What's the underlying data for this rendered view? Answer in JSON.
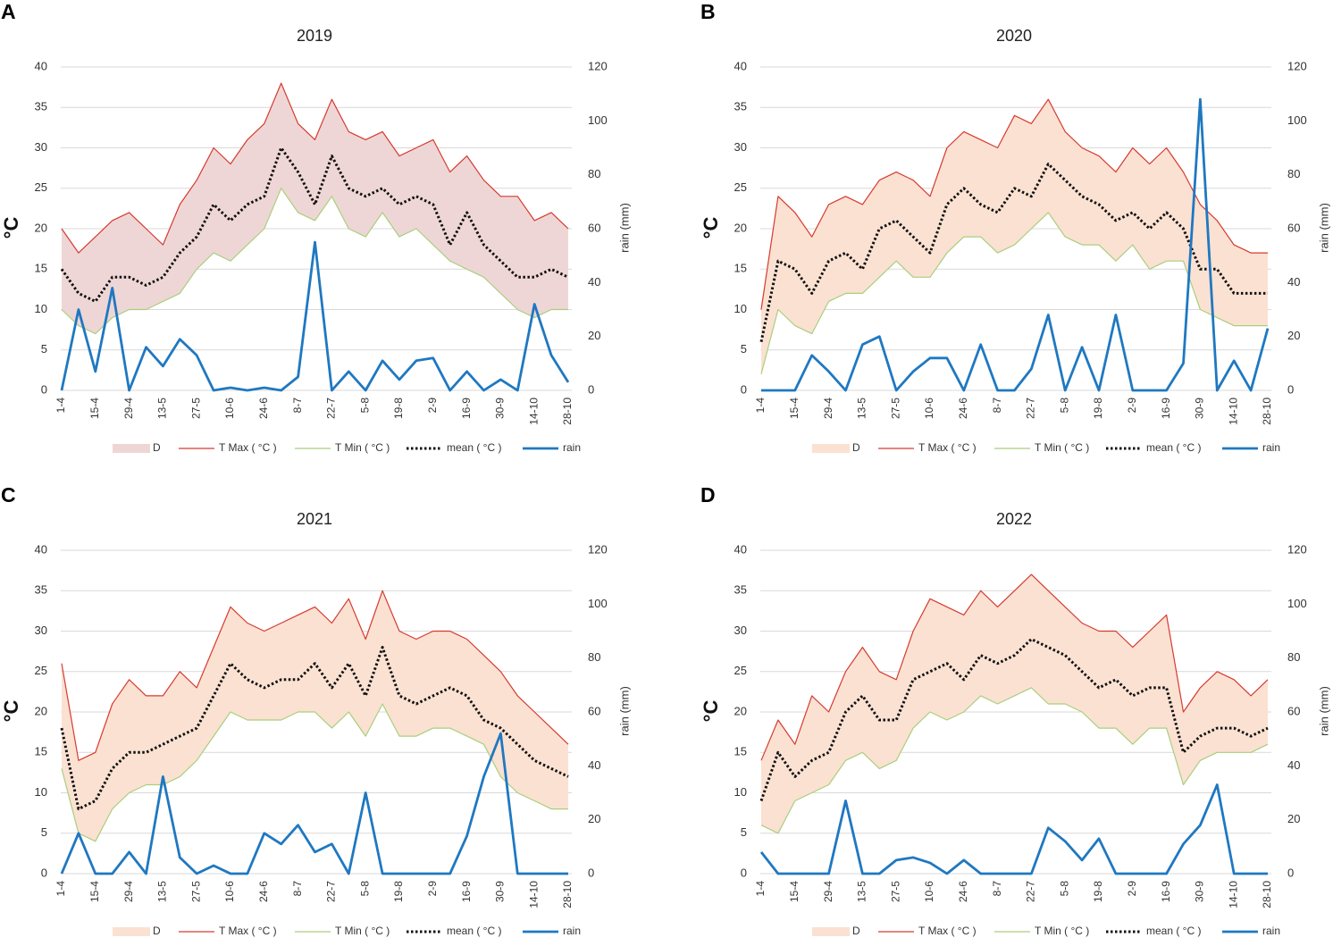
{
  "chart_data": [
    {
      "type": "line",
      "panel_label": "A",
      "title": "2019",
      "ylabel": "°C",
      "y2label": "rain (mm)",
      "categories": [
        "1-4",
        null,
        "15-4",
        null,
        "29-4",
        null,
        "13-5",
        null,
        "27-5",
        null,
        "10-6",
        null,
        "24-6",
        null,
        "8-7",
        null,
        "22-7",
        null,
        "5-8",
        null,
        "19-8",
        null,
        "2-9",
        null,
        "16-9",
        null,
        "30-9",
        null,
        "14-10",
        null,
        "28-10"
      ],
      "ylim": [
        0,
        40
      ],
      "yticks": [
        0,
        5,
        10,
        15,
        20,
        25,
        30,
        35,
        40
      ],
      "y2lim": [
        0,
        120
      ],
      "y2ticks": [
        0,
        20,
        40,
        60,
        80,
        100,
        120
      ],
      "grid": true,
      "series": [
        {
          "name": "D",
          "color": "#efd6d6"
        },
        {
          "name": "T Max ( °C )",
          "color": "#d63a2f",
          "values": [
            20,
            17,
            19,
            21,
            22,
            20,
            18,
            23,
            26,
            30,
            28,
            31,
            33,
            38,
            33,
            31,
            36,
            32,
            31,
            32,
            29,
            30,
            31,
            27,
            29,
            26,
            24,
            24,
            21,
            22,
            20
          ]
        },
        {
          "name": "T Min ( °C )",
          "color": "#a9cf7c",
          "values": [
            10,
            8,
            7,
            9,
            10,
            10,
            11,
            12,
            15,
            17,
            16,
            18,
            20,
            25,
            22,
            21,
            24,
            20,
            19,
            22,
            19,
            20,
            18,
            16,
            15,
            14,
            12,
            10,
            9,
            10,
            10
          ]
        },
        {
          "name": "mean ( °C )",
          "color": "#111111",
          "values": [
            15,
            12,
            11,
            14,
            14,
            13,
            14,
            17,
            19,
            23,
            21,
            23,
            24,
            30,
            27,
            23,
            29,
            25,
            24,
            25,
            23,
            24,
            23,
            18,
            22,
            18,
            16,
            14,
            14,
            15,
            14
          ]
        },
        {
          "name": "rain",
          "color": "#1f78c1",
          "axis": "y2",
          "values": [
            0,
            30,
            7,
            38,
            0,
            16,
            9,
            19,
            13,
            0,
            1,
            0,
            1,
            0,
            5,
            55,
            0,
            7,
            0,
            11,
            4,
            11,
            12,
            0,
            7,
            0,
            4,
            0,
            32,
            13,
            3
          ]
        }
      ]
    },
    {
      "type": "line",
      "panel_label": "B",
      "title": "2020",
      "ylabel": "°C",
      "y2label": "rain (mm)",
      "categories": [
        "1-4",
        null,
        "15-4",
        null,
        "29-4",
        null,
        "13-5",
        null,
        "27-5",
        null,
        "10-6",
        null,
        "24-6",
        null,
        "8-7",
        null,
        "22-7",
        null,
        "5-8",
        null,
        "19-8",
        null,
        "2-9",
        null,
        "16-9",
        null,
        "30-9",
        null,
        "14-10",
        null,
        "28-10"
      ],
      "ylim": [
        0,
        40
      ],
      "yticks": [
        0,
        5,
        10,
        15,
        20,
        25,
        30,
        35,
        40
      ],
      "y2lim": [
        0,
        120
      ],
      "y2ticks": [
        0,
        20,
        40,
        60,
        80,
        100,
        120
      ],
      "grid": true,
      "series": [
        {
          "name": "D",
          "color": "#fbe1d2"
        },
        {
          "name": "T Max ( °C )",
          "color": "#d63a2f",
          "values": [
            10,
            24,
            22,
            19,
            23,
            24,
            23,
            26,
            27,
            26,
            24,
            30,
            32,
            31,
            30,
            34,
            33,
            36,
            32,
            30,
            29,
            27,
            30,
            28,
            30,
            27,
            23,
            21,
            18,
            17,
            17
          ]
        },
        {
          "name": "T Min ( °C )",
          "color": "#a9cf7c",
          "values": [
            2,
            10,
            8,
            7,
            11,
            12,
            12,
            14,
            16,
            14,
            14,
            17,
            19,
            19,
            17,
            18,
            20,
            22,
            19,
            18,
            18,
            16,
            18,
            15,
            16,
            16,
            10,
            9,
            8,
            8,
            8
          ]
        },
        {
          "name": "mean ( °C )",
          "color": "#111111",
          "values": [
            6,
            16,
            15,
            12,
            16,
            17,
            15,
            20,
            21,
            19,
            17,
            23,
            25,
            23,
            22,
            25,
            24,
            28,
            26,
            24,
            23,
            21,
            22,
            20,
            22,
            20,
            15,
            15,
            12,
            12,
            12
          ]
        },
        {
          "name": "rain",
          "color": "#1f78c1",
          "axis": "y2",
          "values": [
            0,
            0,
            0,
            13,
            7,
            0,
            17,
            20,
            0,
            7,
            12,
            12,
            0,
            17,
            0,
            0,
            8,
            28,
            0,
            16,
            0,
            28,
            0,
            0,
            0,
            10,
            108,
            0,
            11,
            0,
            23
          ]
        }
      ]
    },
    {
      "type": "line",
      "panel_label": "C",
      "title": "2021",
      "ylabel": "°C",
      "y2label": "rain (mm)",
      "categories": [
        "1-4",
        null,
        "15-4",
        null,
        "29-4",
        null,
        "13-5",
        null,
        "27-5",
        null,
        "10-6",
        null,
        "24-6",
        null,
        "8-7",
        null,
        "22-7",
        null,
        "5-8",
        null,
        "19-8",
        null,
        "2-9",
        null,
        "16-9",
        null,
        "30-9",
        null,
        "14-10",
        null,
        "28-10"
      ],
      "ylim": [
        0,
        40
      ],
      "yticks": [
        0,
        5,
        10,
        15,
        20,
        25,
        30,
        35,
        40
      ],
      "y2lim": [
        0,
        120
      ],
      "y2ticks": [
        0,
        20,
        40,
        60,
        80,
        100,
        120
      ],
      "grid": true,
      "series": [
        {
          "name": "D",
          "color": "#fbe1d2"
        },
        {
          "name": "T Max ( °C )",
          "color": "#d63a2f",
          "values": [
            26,
            14,
            15,
            21,
            24,
            22,
            22,
            25,
            23,
            28,
            33,
            31,
            30,
            31,
            32,
            33,
            31,
            34,
            29,
            35,
            30,
            29,
            30,
            30,
            29,
            27,
            25,
            22,
            20,
            18,
            16
          ]
        },
        {
          "name": "T Min ( °C )",
          "color": "#a9cf7c",
          "values": [
            13,
            5,
            4,
            8,
            10,
            11,
            11,
            12,
            14,
            17,
            20,
            19,
            19,
            19,
            20,
            20,
            18,
            20,
            17,
            21,
            17,
            17,
            18,
            18,
            17,
            16,
            12,
            10,
            9,
            8,
            8
          ]
        },
        {
          "name": "mean ( °C )",
          "color": "#111111",
          "values": [
            18,
            8,
            9,
            13,
            15,
            15,
            16,
            17,
            18,
            22,
            26,
            24,
            23,
            24,
            24,
            26,
            23,
            26,
            22,
            28,
            22,
            21,
            22,
            23,
            22,
            19,
            18,
            16,
            14,
            13,
            12
          ]
        },
        {
          "name": "rain",
          "color": "#1f78c1",
          "axis": "y2",
          "values": [
            0,
            15,
            0,
            0,
            8,
            0,
            36,
            6,
            0,
            3,
            0,
            0,
            15,
            11,
            18,
            8,
            11,
            0,
            30,
            0,
            0,
            0,
            0,
            0,
            14,
            36,
            52,
            0,
            0,
            0,
            0
          ]
        }
      ]
    },
    {
      "type": "line",
      "panel_label": "D",
      "title": "2022",
      "ylabel": "°C",
      "y2label": "rain (mm)",
      "categories": [
        "1-4",
        null,
        "15-4",
        null,
        "29-4",
        null,
        "13-5",
        null,
        "27-5",
        null,
        "10-6",
        null,
        "24-6",
        null,
        "8-7",
        null,
        "22-7",
        null,
        "5-8",
        null,
        "19-8",
        null,
        "2-9",
        null,
        "16-9",
        null,
        "30-9",
        null,
        "14-10",
        null,
        "28-10"
      ],
      "ylim": [
        0,
        40
      ],
      "yticks": [
        0,
        5,
        10,
        15,
        20,
        25,
        30,
        35,
        40
      ],
      "y2lim": [
        0,
        120
      ],
      "y2ticks": [
        0,
        20,
        40,
        60,
        80,
        100,
        120
      ],
      "grid": true,
      "series": [
        {
          "name": "D",
          "color": "#fbe1d2"
        },
        {
          "name": "T Max ( °C )",
          "color": "#d63a2f",
          "values": [
            14,
            19,
            16,
            22,
            20,
            25,
            28,
            25,
            24,
            30,
            34,
            33,
            32,
            35,
            33,
            35,
            37,
            35,
            33,
            31,
            30,
            30,
            28,
            30,
            32,
            20,
            23,
            25,
            24,
            22,
            24
          ]
        },
        {
          "name": "T Min ( °C )",
          "color": "#a9cf7c",
          "values": [
            6,
            5,
            9,
            10,
            11,
            14,
            15,
            13,
            14,
            18,
            20,
            19,
            20,
            22,
            21,
            22,
            23,
            21,
            21,
            20,
            18,
            18,
            16,
            18,
            18,
            11,
            14,
            15,
            15,
            15,
            16
          ]
        },
        {
          "name": "mean ( °C )",
          "color": "#111111",
          "values": [
            9,
            15,
            12,
            14,
            15,
            20,
            22,
            19,
            19,
            24,
            25,
            26,
            24,
            27,
            26,
            27,
            29,
            28,
            27,
            25,
            23,
            24,
            22,
            23,
            23,
            15,
            17,
            18,
            18,
            17,
            18
          ]
        },
        {
          "name": "rain",
          "color": "#1f78c1",
          "axis": "y2",
          "values": [
            8,
            0,
            0,
            0,
            0,
            27,
            0,
            0,
            5,
            6,
            4,
            0,
            5,
            0,
            0,
            0,
            0,
            17,
            12,
            5,
            13,
            0,
            0,
            0,
            0,
            11,
            18,
            33,
            0,
            0,
            0
          ]
        }
      ]
    }
  ]
}
